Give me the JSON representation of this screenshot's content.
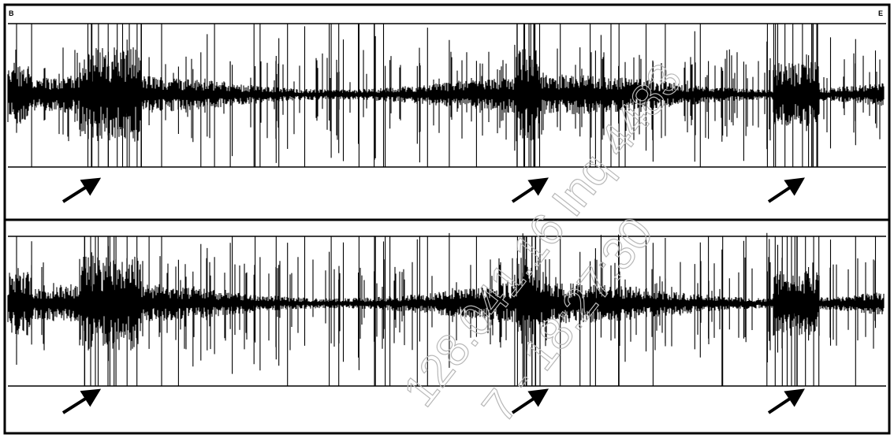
{
  "corner_labels": [
    "B",
    "E"
  ],
  "watermark": [
    "128.041.16 Inq 4483",
    "7 - 18:27:30"
  ]
}
